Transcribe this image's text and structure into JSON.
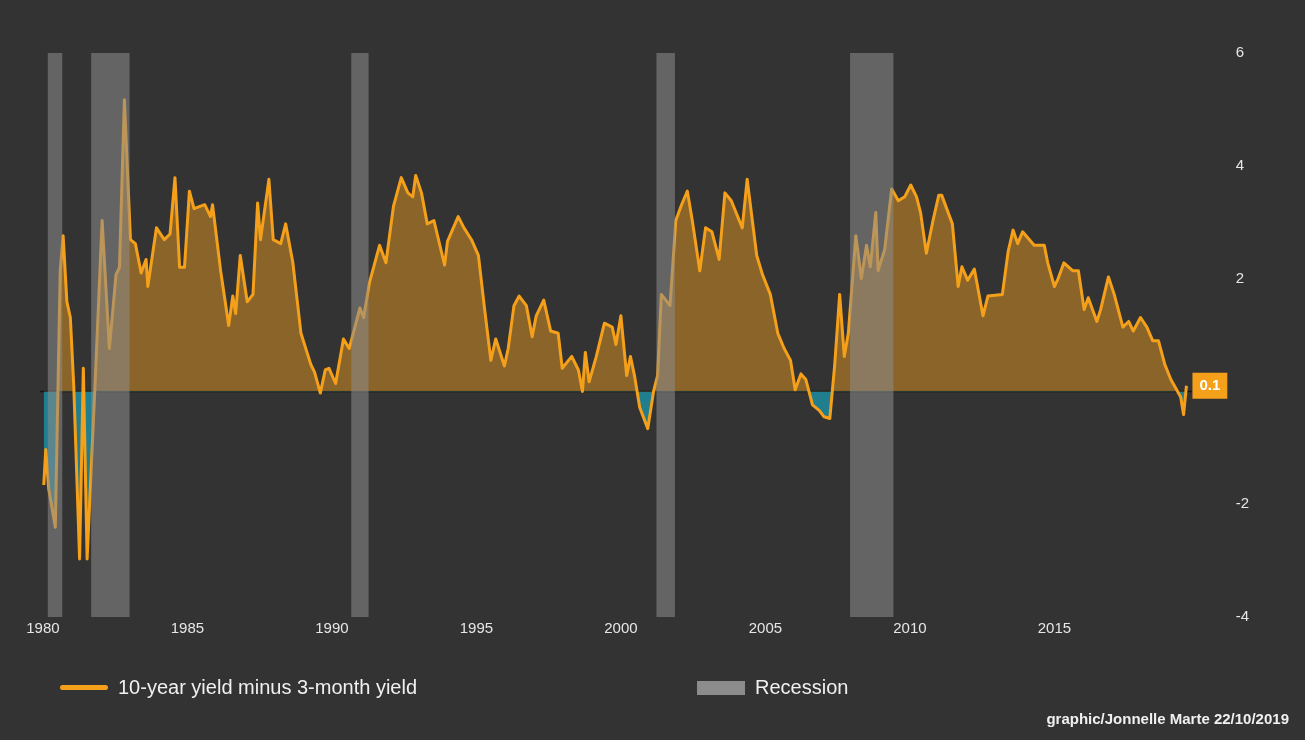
{
  "chart_data": {
    "type": "area",
    "x": [
      1980.03,
      1980.1,
      1980.2,
      1980.43,
      1980.6,
      1980.7,
      1980.83,
      1980.95,
      1981.07,
      1981.27,
      1981.4,
      1981.53,
      1981.8,
      1982.05,
      1982.3,
      1982.53,
      1982.65,
      1982.82,
      1983.03,
      1983.2,
      1983.4,
      1983.57,
      1983.63,
      1983.93,
      1984.2,
      1984.4,
      1984.57,
      1984.73,
      1984.9,
      1985.07,
      1985.23,
      1985.6,
      1985.8,
      1985.87,
      1986.15,
      1986.43,
      1986.57,
      1986.67,
      1986.83,
      1987.07,
      1987.27,
      1987.43,
      1987.53,
      1987.82,
      1987.97,
      1988.23,
      1988.4,
      1988.65,
      1988.93,
      1989.27,
      1989.4,
      1989.6,
      1989.77,
      1989.9,
      1990.13,
      1990.4,
      1990.6,
      1990.97,
      1991.1,
      1991.3,
      1991.65,
      1991.87,
      1992.13,
      1992.4,
      1992.63,
      1992.8,
      1992.9,
      1993.1,
      1993.3,
      1993.53,
      1993.9,
      1994.0,
      1994.37,
      1994.57,
      1994.83,
      1995.07,
      1995.27,
      1995.5,
      1995.67,
      1995.97,
      1996.1,
      1996.3,
      1996.48,
      1996.73,
      1996.93,
      1997.07,
      1997.33,
      1997.57,
      1997.83,
      1997.97,
      1998.3,
      1998.53,
      1998.67,
      1998.77,
      1998.9,
      1999.15,
      1999.43,
      1999.7,
      1999.83,
      2000.0,
      2000.2,
      2000.33,
      2000.47,
      2000.65,
      2000.93,
      2001.13,
      2001.27,
      2001.4,
      2001.7,
      2001.9,
      2002.1,
      2002.3,
      2002.47,
      2002.73,
      2002.93,
      2003.15,
      2003.4,
      2003.6,
      2003.82,
      2004.2,
      2004.37,
      2004.7,
      2004.9,
      2005.17,
      2005.43,
      2005.65,
      2005.87,
      2006.03,
      2006.23,
      2006.4,
      2006.63,
      2006.87,
      2007.03,
      2007.23,
      2007.4,
      2007.57,
      2007.73,
      2007.87,
      2008.13,
      2008.32,
      2008.5,
      2008.63,
      2008.82,
      2008.9,
      2009.13,
      2009.37,
      2009.6,
      2009.82,
      2010.03,
      2010.23,
      2010.37,
      2010.57,
      2010.8,
      2011.0,
      2011.1,
      2011.47,
      2011.67,
      2011.8,
      2012.0,
      2012.23,
      2012.53,
      2012.7,
      2013.2,
      2013.4,
      2013.57,
      2013.73,
      2013.9,
      2014.3,
      2014.65,
      2014.77,
      2015.0,
      2015.13,
      2015.33,
      2015.63,
      2015.83,
      2016.03,
      2016.17,
      2016.47,
      2016.6,
      2016.87,
      2017.07,
      2017.37,
      2017.57,
      2017.73,
      2017.98,
      2018.2,
      2018.4,
      2018.6,
      2018.82,
      2019.03,
      2019.23,
      2019.37,
      2019.47,
      2019.57
    ],
    "series": [
      {
        "name": "10-year yield minus 3-month yield",
        "color": "#f5a01a",
        "values": [
          -1.66,
          -1.03,
          -1.72,
          -2.41,
          2.14,
          2.76,
          1.59,
          1.31,
          0.07,
          -2.97,
          0.41,
          -2.97,
          0.07,
          3.03,
          0.76,
          2.07,
          2.2,
          5.17,
          2.69,
          2.62,
          2.1,
          2.34,
          1.86,
          2.9,
          2.69,
          2.79,
          3.79,
          2.2,
          2.2,
          3.55,
          3.24,
          3.31,
          3.1,
          3.31,
          2.14,
          1.17,
          1.69,
          1.38,
          2.41,
          1.59,
          1.72,
          3.34,
          2.69,
          3.76,
          2.69,
          2.62,
          2.97,
          2.28,
          1.03,
          0.48,
          0.34,
          -0.03,
          0.38,
          0.41,
          0.14,
          0.93,
          0.76,
          1.48,
          1.31,
          1.93,
          2.59,
          2.28,
          3.28,
          3.79,
          3.52,
          3.45,
          3.83,
          3.52,
          2.97,
          3.03,
          2.24,
          2.66,
          3.1,
          2.9,
          2.69,
          2.41,
          1.52,
          0.55,
          0.93,
          0.45,
          0.76,
          1.52,
          1.69,
          1.52,
          0.97,
          1.34,
          1.62,
          1.07,
          1.03,
          0.41,
          0.62,
          0.38,
          0.0,
          0.69,
          0.17,
          0.62,
          1.21,
          1.14,
          0.83,
          1.34,
          0.28,
          0.62,
          0.28,
          -0.28,
          -0.66,
          0.0,
          0.28,
          1.72,
          1.52,
          3.03,
          3.31,
          3.55,
          3.03,
          2.14,
          2.9,
          2.83,
          2.34,
          3.52,
          3.38,
          2.9,
          3.76,
          2.41,
          2.07,
          1.72,
          1.03,
          0.76,
          0.55,
          0.03,
          0.31,
          0.21,
          -0.24,
          -0.34,
          -0.45,
          -0.48,
          0.48,
          1.72,
          0.62,
          1.03,
          2.76,
          2.0,
          2.59,
          2.21,
          3.17,
          2.14,
          2.52,
          3.59,
          3.38,
          3.45,
          3.66,
          3.45,
          3.17,
          2.45,
          3.03,
          3.48,
          3.48,
          2.97,
          1.86,
          2.21,
          1.97,
          2.17,
          1.34,
          1.69,
          1.72,
          2.48,
          2.86,
          2.62,
          2.83,
          2.59,
          2.59,
          2.28,
          1.86,
          2.0,
          2.28,
          2.14,
          2.14,
          1.45,
          1.66,
          1.24,
          1.45,
          2.03,
          1.72,
          1.14,
          1.24,
          1.07,
          1.31,
          1.14,
          0.9,
          0.9,
          0.48,
          0.21,
          0.03,
          -0.1,
          -0.41,
          0.1
        ]
      }
    ],
    "xlim": [
      1979.9,
      2019.75
    ],
    "xticks": [
      1980,
      1985,
      1990,
      1995,
      2000,
      2005,
      2010,
      2015
    ],
    "ylim": [
      -4,
      6
    ],
    "yticks": [
      -4,
      -2,
      2,
      4,
      6
    ],
    "grid": false,
    "legend": "bottom",
    "ref_lines": [
      {
        "axis": "y",
        "value": 0,
        "color": "#141414"
      }
    ],
    "bands": [
      {
        "axis": "x",
        "from": 1980.17,
        "to": 1980.67,
        "label": "Recession",
        "color": "#8c8c8c"
      },
      {
        "axis": "x",
        "from": 1981.67,
        "to": 1983.0,
        "color": "#8c8c8c"
      },
      {
        "axis": "x",
        "from": 1990.67,
        "to": 1991.27,
        "color": "#8c8c8c"
      },
      {
        "axis": "x",
        "from": 2001.23,
        "to": 2001.87,
        "color": "#8c8c8c"
      },
      {
        "axis": "x",
        "from": 2007.93,
        "to": 2009.43,
        "color": "#8c8c8c"
      }
    ],
    "annotations": [
      {
        "text": "0.1",
        "x": 2019.57,
        "y": 0.1
      },
      "graphic/Jonnelle Marte 22/10/2019"
    ]
  }
}
